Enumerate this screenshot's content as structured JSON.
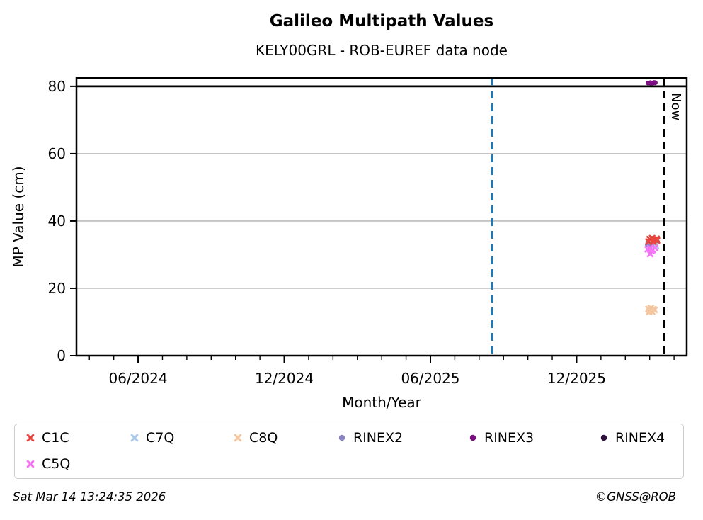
{
  "chart_data": {
    "type": "scatter",
    "title": "Galileo Multipath Values",
    "subtitle": "KELY00GRL - ROB-EUREF data node",
    "xlabel": "Month/Year",
    "ylabel": "MP Value (cm)",
    "x_unit": "months since 2024-06",
    "xlim": [
      -2.53,
      22.52
    ],
    "ylim": [
      0,
      82.5
    ],
    "grid": "horizontal",
    "grid_color": "#b0b0b0",
    "y_ticks": [
      0,
      20,
      40,
      60,
      80
    ],
    "x_major_ticks": [
      {
        "t": 0,
        "label": "06/2024"
      },
      {
        "t": 6,
        "label": "12/2024"
      },
      {
        "t": 12,
        "label": "06/2025"
      },
      {
        "t": 18,
        "label": "12/2025"
      }
    ],
    "x_minor_tick_step": 1,
    "threshold_line": {
      "y": 80,
      "color": "#000000"
    },
    "vlines": [
      {
        "t": 14.53,
        "color": "#1f77b4",
        "style": "dashed",
        "label": ""
      },
      {
        "t": 21.59,
        "color": "#000000",
        "style": "dashed",
        "label": "Now"
      }
    ],
    "series": [
      {
        "name": "C7Q",
        "marker": "x",
        "color": "#a9c9e8",
        "points": [
          [
            20.95,
            33.0
          ],
          [
            21.05,
            33.2
          ],
          [
            21.15,
            32.8
          ],
          [
            21.25,
            32.6
          ],
          [
            21.0,
            32.3
          ],
          [
            21.1,
            32.7
          ],
          [
            21.2,
            33.0
          ]
        ]
      },
      {
        "name": "C8Q",
        "marker": "x",
        "color": "#f5c7a0",
        "points": [
          [
            20.95,
            13.9
          ],
          [
            21.05,
            14.15
          ],
          [
            21.15,
            13.8
          ],
          [
            21.0,
            13.4
          ],
          [
            21.1,
            13.1
          ],
          [
            21.2,
            13.6
          ],
          [
            20.98,
            13.0
          ]
        ]
      },
      {
        "name": "RINEX2",
        "marker": "circle",
        "color": "#8b84c6",
        "points": [
          [
            20.9,
            32.9
          ],
          [
            21.0,
            32.5
          ],
          [
            21.08,
            32.8
          ]
        ]
      },
      {
        "name": "RINEX4",
        "marker": "circle",
        "color": "#30103c",
        "points": [
          [
            21.02,
            81.0
          ],
          [
            21.22,
            81.05
          ]
        ]
      },
      {
        "name": "RINEX3",
        "marker": "circle",
        "color": "#7b0f82",
        "points": [
          [
            20.93,
            81.0
          ],
          [
            21.03,
            81.1
          ],
          [
            21.13,
            81.0
          ],
          [
            21.23,
            81.1
          ],
          [
            21.08,
            80.9
          ],
          [
            21.18,
            81.15
          ]
        ]
      },
      {
        "name": "C1C",
        "marker": "x",
        "color": "#e8473f",
        "points": [
          [
            21.0,
            34.6
          ],
          [
            21.1,
            34.9
          ],
          [
            21.2,
            34.4
          ],
          [
            21.3,
            34.2
          ],
          [
            20.95,
            33.9
          ],
          [
            21.15,
            33.8
          ],
          [
            21.28,
            34.7
          ]
        ]
      },
      {
        "name": "C5Q",
        "marker": "x",
        "color": "#f573f5",
        "points": [
          [
            20.92,
            31.6
          ],
          [
            21.02,
            31.9
          ],
          [
            21.12,
            31.4
          ],
          [
            21.22,
            32.0
          ],
          [
            21.07,
            31.1
          ],
          [
            21.02,
            30.2
          ]
        ]
      }
    ],
    "legend_order": [
      "C1C",
      "C7Q",
      "C8Q",
      "RINEX2",
      "RINEX3",
      "RINEX4",
      "C5Q"
    ]
  },
  "footer": {
    "timestamp": "Sat Mar 14 13:24:35 2026",
    "credit": "©GNSS@ROB"
  }
}
